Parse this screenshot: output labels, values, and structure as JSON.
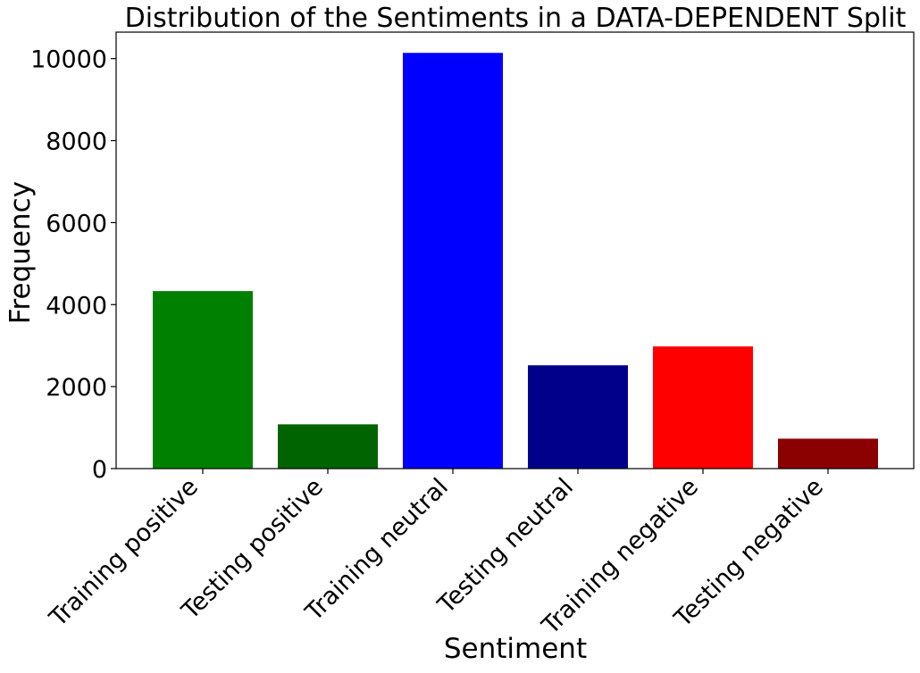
{
  "chart_data": {
    "type": "bar",
    "title": "Distribution of the Sentiments in a DATA-DEPENDENT Split",
    "xlabel": "Sentiment",
    "ylabel": "Frequency",
    "categories": [
      "Training positive",
      "Testing positive",
      "Training neutral",
      "Testing neutral",
      "Training negative",
      "Testing negative"
    ],
    "values": [
      4330,
      1080,
      10140,
      2520,
      2980,
      730
    ],
    "colors": [
      "#008000",
      "#006400",
      "#0000ff",
      "#00008b",
      "#ff0000",
      "#8b0000"
    ],
    "ylim": [
      0,
      10646
    ],
    "yticks": [
      0,
      2000,
      4000,
      6000,
      8000,
      10000
    ],
    "grid": false,
    "legend": "none"
  }
}
